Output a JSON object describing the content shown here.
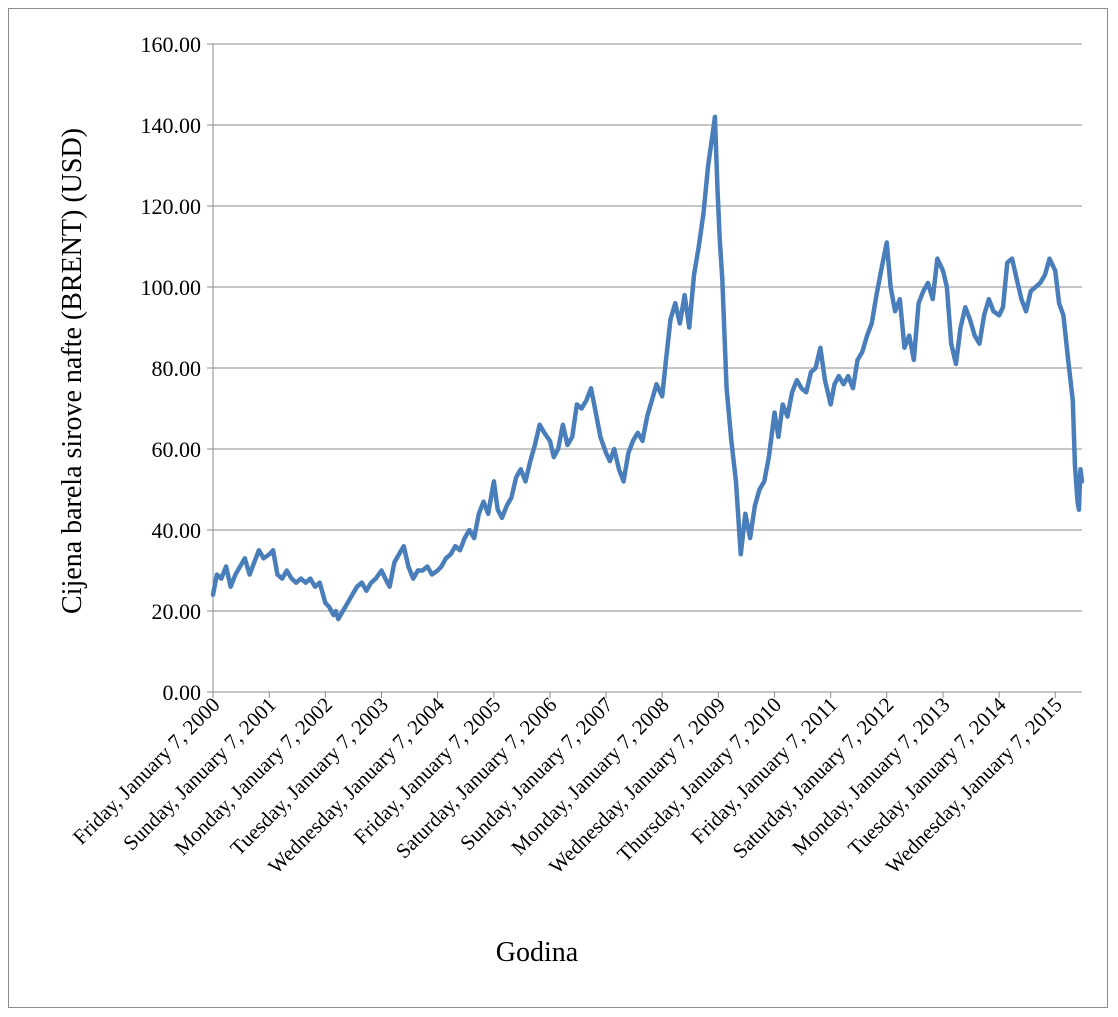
{
  "chart_data": {
    "type": "line",
    "title": "",
    "xlabel": "Godina",
    "ylabel": "Cijena barela sirove nafte (BRENT) (USD)",
    "ylim": [
      0,
      160
    ],
    "y_ticks": [
      "0.00",
      "20.00",
      "40.00",
      "60.00",
      "80.00",
      "100.00",
      "120.00",
      "140.00",
      "160.00"
    ],
    "x_range": [
      "2000-01-07",
      "2015-06-30"
    ],
    "x_ticks": [
      {
        "date": "2000-01-07",
        "label": "Friday, January 7, 2000"
      },
      {
        "date": "2001-01-07",
        "label": "Sunday, January 7, 2001"
      },
      {
        "date": "2002-01-07",
        "label": "Monday, January 7, 2002"
      },
      {
        "date": "2003-01-07",
        "label": "Tuesday, January 7, 2003"
      },
      {
        "date": "2004-01-07",
        "label": "Wednesday, January 7, 2004"
      },
      {
        "date": "2005-01-07",
        "label": "Friday, January 7, 2005"
      },
      {
        "date": "2006-01-07",
        "label": "Saturday, January 7, 2006"
      },
      {
        "date": "2007-01-07",
        "label": "Sunday, January 7, 2007"
      },
      {
        "date": "2008-01-07",
        "label": "Monday, January 7, 2008"
      },
      {
        "date": "2009-01-07",
        "label": "Wednesday, January 7, 2009"
      },
      {
        "date": "2010-01-07",
        "label": "Thursday, January 7, 2010"
      },
      {
        "date": "2011-01-07",
        "label": "Friday, January 7, 2011"
      },
      {
        "date": "2012-01-07",
        "label": "Saturday, January 7, 2012"
      },
      {
        "date": "2013-01-07",
        "label": "Monday, January 7, 2013"
      },
      {
        "date": "2014-01-07",
        "label": "Tuesday, January 7, 2014"
      },
      {
        "date": "2015-01-07",
        "label": "Wednesday, January 7, 2015"
      }
    ],
    "grid": "horizontal",
    "legend": "none",
    "colors": {
      "series": "#4a7ebb",
      "grid": "#8c8c8c",
      "axis": "#8c8c8c"
    },
    "series": [
      {
        "color": "#4a7ebb",
        "points": [
          [
            "2000-01-07",
            24
          ],
          [
            "2000-02-01",
            29
          ],
          [
            "2000-03-01",
            28
          ],
          [
            "2000-04-01",
            31
          ],
          [
            "2000-05-01",
            26
          ],
          [
            "2000-06-01",
            29
          ],
          [
            "2000-07-01",
            31
          ],
          [
            "2000-08-01",
            33
          ],
          [
            "2000-09-01",
            29
          ],
          [
            "2000-10-01",
            32
          ],
          [
            "2000-11-01",
            35
          ],
          [
            "2000-12-01",
            33
          ],
          [
            "2001-01-07",
            34
          ],
          [
            "2001-02-01",
            35
          ],
          [
            "2001-03-01",
            29
          ],
          [
            "2001-04-01",
            28
          ],
          [
            "2001-05-01",
            30
          ],
          [
            "2001-06-01",
            28
          ],
          [
            "2001-07-01",
            27
          ],
          [
            "2001-08-01",
            28
          ],
          [
            "2001-09-01",
            27
          ],
          [
            "2001-10-01",
            28
          ],
          [
            "2001-11-01",
            26
          ],
          [
            "2001-12-01",
            27
          ],
          [
            "2002-01-07",
            22
          ],
          [
            "2002-02-01",
            21
          ],
          [
            "2002-03-01",
            19
          ],
          [
            "2002-03-15",
            20
          ],
          [
            "2002-04-01",
            18
          ],
          [
            "2002-05-01",
            20
          ],
          [
            "2002-06-01",
            22
          ],
          [
            "2002-07-01",
            24
          ],
          [
            "2002-08-01",
            26
          ],
          [
            "2002-09-01",
            27
          ],
          [
            "2002-10-01",
            25
          ],
          [
            "2002-11-01",
            27
          ],
          [
            "2002-12-01",
            28
          ],
          [
            "2003-01-07",
            30
          ],
          [
            "2003-02-01",
            28
          ],
          [
            "2003-03-01",
            26
          ],
          [
            "2003-04-01",
            32
          ],
          [
            "2003-05-01",
            34
          ],
          [
            "2003-06-01",
            36
          ],
          [
            "2003-07-01",
            31
          ],
          [
            "2003-08-01",
            28
          ],
          [
            "2003-09-01",
            30
          ],
          [
            "2003-10-01",
            30
          ],
          [
            "2003-11-01",
            31
          ],
          [
            "2003-12-01",
            29
          ],
          [
            "2004-01-07",
            30
          ],
          [
            "2004-02-01",
            31
          ],
          [
            "2004-03-01",
            33
          ],
          [
            "2004-04-01",
            34
          ],
          [
            "2004-05-01",
            36
          ],
          [
            "2004-06-01",
            35
          ],
          [
            "2004-07-01",
            38
          ],
          [
            "2004-08-01",
            40
          ],
          [
            "2004-09-01",
            38
          ],
          [
            "2004-10-01",
            44
          ],
          [
            "2004-11-01",
            47
          ],
          [
            "2004-12-01",
            44
          ],
          [
            "2005-01-07",
            52
          ],
          [
            "2005-02-01",
            45
          ],
          [
            "2005-03-01",
            43
          ],
          [
            "2005-04-01",
            46
          ],
          [
            "2005-05-01",
            48
          ],
          [
            "2005-06-01",
            53
          ],
          [
            "2005-07-01",
            55
          ],
          [
            "2005-08-01",
            52
          ],
          [
            "2005-09-01",
            57
          ],
          [
            "2005-10-01",
            61
          ],
          [
            "2005-11-01",
            66
          ],
          [
            "2005-12-01",
            64
          ],
          [
            "2006-01-07",
            62
          ],
          [
            "2006-02-01",
            58
          ],
          [
            "2006-03-01",
            60
          ],
          [
            "2006-04-01",
            66
          ],
          [
            "2006-05-01",
            61
          ],
          [
            "2006-06-01",
            63
          ],
          [
            "2006-07-01",
            71
          ],
          [
            "2006-08-01",
            70
          ],
          [
            "2006-09-01",
            72
          ],
          [
            "2006-10-01",
            75
          ],
          [
            "2006-11-01",
            69
          ],
          [
            "2006-12-01",
            63
          ],
          [
            "2007-01-07",
            59
          ],
          [
            "2007-02-01",
            57
          ],
          [
            "2007-03-01",
            60
          ],
          [
            "2007-04-01",
            55
          ],
          [
            "2007-05-01",
            52
          ],
          [
            "2007-06-01",
            59
          ],
          [
            "2007-07-01",
            62
          ],
          [
            "2007-08-01",
            64
          ],
          [
            "2007-09-01",
            62
          ],
          [
            "2007-10-01",
            68
          ],
          [
            "2007-11-01",
            72
          ],
          [
            "2007-12-01",
            76
          ],
          [
            "2008-01-07",
            73
          ],
          [
            "2008-02-01",
            82
          ],
          [
            "2008-03-01",
            92
          ],
          [
            "2008-04-01",
            96
          ],
          [
            "2008-05-01",
            91
          ],
          [
            "2008-06-01",
            98
          ],
          [
            "2008-07-01",
            90
          ],
          [
            "2008-08-01",
            103
          ],
          [
            "2008-09-01",
            110
          ],
          [
            "2008-10-01",
            118
          ],
          [
            "2008-11-01",
            130
          ],
          [
            "2008-12-01",
            138
          ],
          [
            "2008-12-15",
            142
          ],
          [
            "2009-01-01",
            124
          ],
          [
            "2009-01-15",
            112
          ],
          [
            "2009-02-01",
            102
          ],
          [
            "2009-03-01",
            75
          ],
          [
            "2009-04-01",
            62
          ],
          [
            "2009-05-01",
            52
          ],
          [
            "2009-06-01",
            34
          ],
          [
            "2009-07-01",
            44
          ],
          [
            "2009-08-01",
            38
          ],
          [
            "2009-09-01",
            46
          ],
          [
            "2009-10-01",
            50
          ],
          [
            "2009-11-01",
            52
          ],
          [
            "2009-12-01",
            58
          ],
          [
            "2010-01-07",
            69
          ],
          [
            "2010-02-01",
            63
          ],
          [
            "2010-03-01",
            71
          ],
          [
            "2010-04-01",
            68
          ],
          [
            "2010-05-01",
            74
          ],
          [
            "2010-06-01",
            77
          ],
          [
            "2010-07-01",
            75
          ],
          [
            "2010-08-01",
            74
          ],
          [
            "2010-09-01",
            79
          ],
          [
            "2010-10-01",
            80
          ],
          [
            "2010-11-01",
            85
          ],
          [
            "2010-12-01",
            77
          ],
          [
            "2011-01-07",
            71
          ],
          [
            "2011-02-01",
            76
          ],
          [
            "2011-03-01",
            78
          ],
          [
            "2011-04-01",
            76
          ],
          [
            "2011-05-01",
            78
          ],
          [
            "2011-06-01",
            75
          ],
          [
            "2011-07-01",
            82
          ],
          [
            "2011-08-01",
            84
          ],
          [
            "2011-09-01",
            88
          ],
          [
            "2011-10-01",
            91
          ],
          [
            "2011-11-01",
            98
          ],
          [
            "2011-12-01",
            104
          ],
          [
            "2012-01-07",
            111
          ],
          [
            "2012-02-01",
            100
          ],
          [
            "2012-03-01",
            94
          ],
          [
            "2012-04-01",
            97
          ],
          [
            "2012-05-01",
            85
          ],
          [
            "2012-06-01",
            88
          ],
          [
            "2012-07-01",
            82
          ],
          [
            "2012-08-01",
            96
          ],
          [
            "2012-09-01",
            99
          ],
          [
            "2012-10-01",
            101
          ],
          [
            "2012-11-01",
            97
          ],
          [
            "2012-12-01",
            107
          ],
          [
            "2013-01-07",
            104
          ],
          [
            "2013-02-01",
            100
          ],
          [
            "2013-03-01",
            86
          ],
          [
            "2013-04-01",
            81
          ],
          [
            "2013-05-01",
            90
          ],
          [
            "2013-06-01",
            95
          ],
          [
            "2013-07-01",
            92
          ],
          [
            "2013-08-01",
            88
          ],
          [
            "2013-09-01",
            86
          ],
          [
            "2013-10-01",
            93
          ],
          [
            "2013-11-01",
            97
          ],
          [
            "2013-12-01",
            94
          ],
          [
            "2014-01-07",
            93
          ],
          [
            "2014-02-01",
            95
          ],
          [
            "2014-03-01",
            106
          ],
          [
            "2014-04-01",
            107
          ],
          [
            "2014-05-01",
            102
          ],
          [
            "2014-06-01",
            97
          ],
          [
            "2014-07-01",
            94
          ],
          [
            "2014-08-01",
            99
          ],
          [
            "2014-09-01",
            100
          ],
          [
            "2014-10-01",
            101
          ],
          [
            "2014-11-01",
            103
          ],
          [
            "2014-12-01",
            107
          ],
          [
            "2015-01-07",
            104
          ],
          [
            "2015-02-01",
            96
          ],
          [
            "2015-03-01",
            93
          ],
          [
            "2015-04-01",
            82
          ],
          [
            "2015-05-01",
            72
          ],
          [
            "2015-05-15",
            56
          ],
          [
            "2015-06-01",
            47
          ],
          [
            "2015-06-10",
            45
          ],
          [
            "2015-06-20",
            55
          ],
          [
            "2015-06-30",
            52
          ]
        ]
      }
    ]
  }
}
